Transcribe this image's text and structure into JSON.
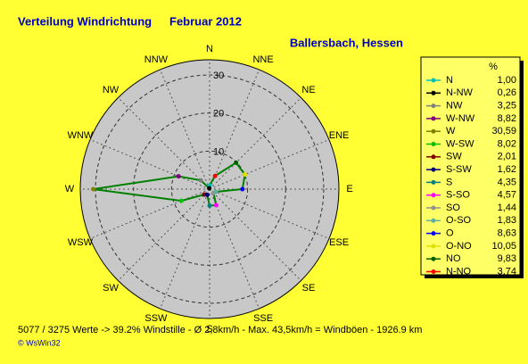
{
  "chart_data": {
    "type": "wind-rose",
    "title": "Verteilung Windrichtung",
    "subtitle": "Februar 2012",
    "location": "Ballersbach, Hessen",
    "footer": "5077 / 3275 Werte  -> 39.2% Windstille   -   Ø 2,8km/h  -  Max. 43,5km/h = Windböen   -   1926.9 km",
    "credit": "© WsWin32",
    "direction_labels": [
      "N",
      "NNE",
      "NE",
      "ENE",
      "E",
      "ESE",
      "SE",
      "SSE",
      "S",
      "SSW",
      "SW",
      "WSW",
      "W",
      "WNW",
      "NW",
      "NNW"
    ],
    "legend_header": "%",
    "categories": [
      "N",
      "N-NW",
      "NW",
      "W-NW",
      "W",
      "W-SW",
      "SW",
      "S-SW",
      "S",
      "S-SO",
      "SO",
      "O-SO",
      "O",
      "O-NO",
      "NO",
      "N-NO"
    ],
    "values": [
      1.0,
      0.26,
      3.25,
      8.82,
      30.59,
      8.02,
      2.01,
      1.62,
      4.35,
      4.57,
      1.44,
      1.83,
      8.63,
      10.05,
      9.83,
      3.74
    ],
    "value_labels": [
      "1,00",
      "0,26",
      "3,25",
      "8,82",
      "30,59",
      "8,02",
      "2,01",
      "1,62",
      "4,35",
      "4,57",
      "1,44",
      "1,83",
      "8,63",
      "10,05",
      "9,83",
      "3,74"
    ],
    "colors": [
      "#00c0c0",
      "#000000",
      "#808080",
      "#800080",
      "#808000",
      "#00c000",
      "#800000",
      "#000080",
      "#008080",
      "#ff00ff",
      "#909090",
      "#60b0a0",
      "#0000ff",
      "#e0e000",
      "#006000",
      "#ff0000"
    ],
    "line_color": "#008000",
    "rlim": [
      0,
      34
    ],
    "rticks": [
      10,
      20,
      30
    ]
  }
}
